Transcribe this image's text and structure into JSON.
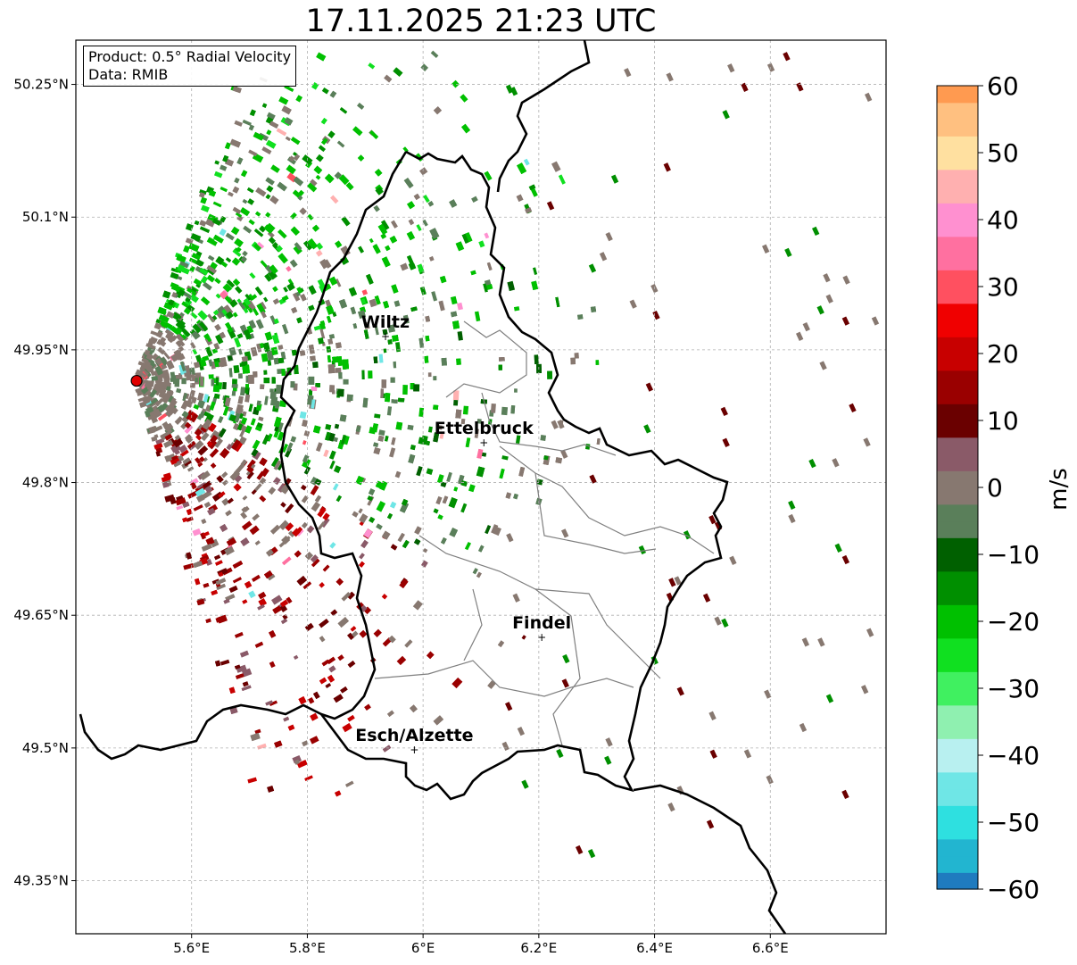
{
  "title": "17.11.2025 21:23 UTC",
  "info": {
    "product": "Product: 0.5° Radial Velocity",
    "data": "Data: RMIB"
  },
  "map_extent": {
    "lon_min": 5.4,
    "lon_max": 6.8,
    "lat_min": 49.29,
    "lat_max": 50.3
  },
  "lon_ticks": [
    {
      "value": 5.6,
      "label": "5.6°E"
    },
    {
      "value": 5.8,
      "label": "5.8°E"
    },
    {
      "value": 6.0,
      "label": "6°E"
    },
    {
      "value": 6.2,
      "label": "6.2°E"
    },
    {
      "value": 6.4,
      "label": "6.4°E"
    },
    {
      "value": 6.6,
      "label": "6.6°E"
    }
  ],
  "lat_ticks": [
    {
      "value": 50.25,
      "label": "50.25°N"
    },
    {
      "value": 50.1,
      "label": "50.1°N"
    },
    {
      "value": 49.95,
      "label": "49.95°N"
    },
    {
      "value": 49.8,
      "label": "49.8°N"
    },
    {
      "value": 49.65,
      "label": "49.65°N"
    },
    {
      "value": 49.5,
      "label": "49.5°N"
    },
    {
      "value": 49.35,
      "label": "49.35°N"
    }
  ],
  "radar_site": {
    "lon": 5.505,
    "lat": 49.915
  },
  "cities": [
    {
      "name": "Wiltz",
      "lon": 5.935,
      "lat": 49.965
    },
    {
      "name": "Ettelbruck",
      "lon": 6.105,
      "lat": 49.845
    },
    {
      "name": "Findel",
      "lon": 6.205,
      "lat": 49.625
    },
    {
      "name": "Esch/Alzette",
      "lon": 5.985,
      "lat": 49.498
    }
  ],
  "colorbar": {
    "label": "m/s",
    "min": -60,
    "max": 60,
    "ticks": [
      "60",
      "50",
      "40",
      "30",
      "20",
      "10",
      "0",
      "−10",
      "−20",
      "−30",
      "−40",
      "−50",
      "−60"
    ],
    "stops": [
      {
        "v": -60,
        "color": "#1f7bbf"
      },
      {
        "v": -55,
        "color": "#22b5d0"
      },
      {
        "v": -50,
        "color": "#2ee0e0"
      },
      {
        "v": -45,
        "color": "#6fe6e6"
      },
      {
        "v": -40,
        "color": "#b8f0f0"
      },
      {
        "v": -35,
        "color": "#8ff0b0"
      },
      {
        "v": -30,
        "color": "#40f060"
      },
      {
        "v": -25,
        "color": "#10e020"
      },
      {
        "v": -20,
        "color": "#00c000"
      },
      {
        "v": -15,
        "color": "#008f00"
      },
      {
        "v": -10,
        "color": "#006000"
      },
      {
        "v": -5,
        "color": "#5a7f5a"
      },
      {
        "v": 0,
        "color": "#877870"
      },
      {
        "v": 5,
        "color": "#8a5a68"
      },
      {
        "v": 10,
        "color": "#6a0000"
      },
      {
        "v": 15,
        "color": "#9a0000"
      },
      {
        "v": 20,
        "color": "#c80000"
      },
      {
        "v": 25,
        "color": "#f00000"
      },
      {
        "v": 30,
        "color": "#ff5060"
      },
      {
        "v": 35,
        "color": "#ff70a0"
      },
      {
        "v": 40,
        "color": "#ff90d0"
      },
      {
        "v": 45,
        "color": "#ffb0b0"
      },
      {
        "v": 50,
        "color": "#ffe0a0"
      },
      {
        "v": 55,
        "color": "#ffc080"
      },
      {
        "v": 60,
        "color": "#ff9a50"
      }
    ]
  },
  "colors": {
    "border": "#000000",
    "admin": "#7f7f7f",
    "grid": "#b0b0b0",
    "radar_marker": "#e00000"
  }
}
